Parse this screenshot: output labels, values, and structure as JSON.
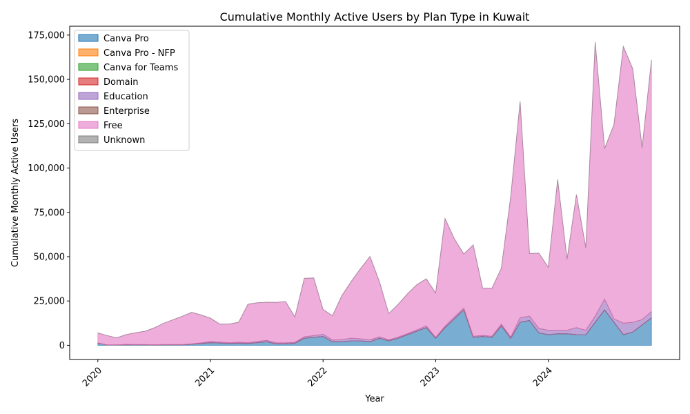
{
  "chart_data": {
    "type": "area",
    "stacked": true,
    "title": "Cumulative Monthly Active Users by Plan Type in Kuwait",
    "xlabel": "Year",
    "ylabel": "Cumulative Monthly Active Users",
    "x_start": "2020-01",
    "x_end": "2024-12",
    "xlim": [
      "2019-10",
      "2025-03"
    ],
    "ylim": [
      -8000,
      180000
    ],
    "y_ticks": [
      0,
      25000,
      50000,
      75000,
      100000,
      125000,
      150000,
      175000
    ],
    "y_tick_labels": [
      "0",
      "25,000",
      "50,000",
      "75,000",
      "100,000",
      "125,000",
      "150,000",
      "175,000"
    ],
    "x_ticks": [
      "2020-01",
      "2021-01",
      "2022-01",
      "2023-01",
      "2024-01"
    ],
    "x_tick_labels": [
      "2020",
      "2021",
      "2022",
      "2023",
      "2024"
    ],
    "legend_position": "upper-left",
    "series": [
      {
        "name": "Canva Pro",
        "color": "#1f77b4",
        "values": [
          1200,
          200,
          200,
          300,
          300,
          300,
          200,
          300,
          300,
          300,
          600,
          1000,
          1500,
          1300,
          1000,
          1200,
          1000,
          1500,
          2000,
          800,
          800,
          1200,
          4000,
          4500,
          5000,
          2000,
          2000,
          2500,
          2500,
          2000,
          4000,
          2500,
          4000,
          6000,
          8000,
          10000,
          4000,
          10000,
          15000,
          20000,
          4500,
          5000,
          4500,
          11000,
          4000,
          13000,
          14000,
          7000,
          6000,
          6500,
          6500,
          6000,
          6000,
          13000,
          20000,
          13000,
          6000,
          7500,
          11500,
          15500
        ]
      },
      {
        "name": "Canva Pro - NFP",
        "color": "#ff7f0e",
        "values": [
          0,
          0,
          0,
          0,
          0,
          0,
          0,
          0,
          0,
          0,
          0,
          0,
          0,
          0,
          0,
          0,
          0,
          0,
          0,
          0,
          0,
          0,
          0,
          0,
          0,
          0,
          0,
          0,
          0,
          0,
          0,
          0,
          0,
          0,
          0,
          0,
          0,
          0,
          0,
          0,
          0,
          0,
          0,
          0,
          0,
          0,
          0,
          0,
          0,
          0,
          0,
          0,
          0,
          0,
          0,
          0,
          0,
          0,
          0,
          0
        ]
      },
      {
        "name": "Canva for Teams",
        "color": "#2ca02c",
        "values": [
          0,
          0,
          0,
          0,
          0,
          0,
          0,
          0,
          0,
          0,
          0,
          0,
          0,
          0,
          0,
          0,
          0,
          0,
          0,
          0,
          0,
          0,
          0,
          0,
          0,
          0,
          0,
          0,
          0,
          0,
          0,
          0,
          0,
          0,
          0,
          0,
          0,
          0,
          0,
          0,
          0,
          0,
          0,
          0,
          0,
          0,
          0,
          0,
          0,
          0,
          0,
          0,
          0,
          0,
          0,
          0,
          0,
          0,
          0,
          0
        ]
      },
      {
        "name": "Domain",
        "color": "#d62728",
        "values": [
          0,
          0,
          0,
          0,
          0,
          0,
          0,
          0,
          0,
          0,
          0,
          0,
          0,
          0,
          0,
          0,
          0,
          0,
          0,
          0,
          0,
          0,
          0,
          0,
          0,
          0,
          0,
          0,
          0,
          0,
          0,
          0,
          0,
          0,
          0,
          0,
          0,
          0,
          0,
          0,
          0,
          0,
          0,
          0,
          0,
          0,
          0,
          0,
          0,
          0,
          0,
          0,
          0,
          0,
          0,
          0,
          0,
          0,
          0,
          0
        ]
      },
      {
        "name": "Education",
        "color": "#9467bd",
        "values": [
          200,
          0,
          0,
          200,
          100,
          100,
          100,
          100,
          100,
          100,
          200,
          400,
          600,
          500,
          500,
          500,
          500,
          700,
          800,
          600,
          600,
          500,
          800,
          1000,
          1200,
          1000,
          1200,
          1500,
          1200,
          1100,
          800,
          600,
          600,
          600,
          700,
          1000,
          500,
          800,
          1000,
          1000,
          600,
          600,
          600,
          900,
          600,
          2500,
          2500,
          2500,
          2500,
          2000,
          2000,
          4000,
          2500,
          3500,
          6000,
          2000,
          6500,
          5500,
          3000,
          3500
        ]
      },
      {
        "name": "Enterprise",
        "color": "#8c564b",
        "values": [
          0,
          0,
          0,
          0,
          0,
          0,
          0,
          0,
          0,
          0,
          0,
          0,
          0,
          0,
          0,
          0,
          0,
          0,
          0,
          0,
          0,
          0,
          0,
          0,
          0,
          0,
          0,
          0,
          0,
          0,
          0,
          0,
          0,
          0,
          0,
          0,
          0,
          0,
          0,
          0,
          0,
          0,
          0,
          0,
          0,
          0,
          0,
          0,
          0,
          0,
          0,
          0,
          0,
          0,
          0,
          0,
          0,
          0,
          0,
          0
        ]
      },
      {
        "name": "Free",
        "color": "#e377c2",
        "values": [
          5600,
          5300,
          4000,
          5500,
          6700,
          7500,
          9500,
          12000,
          14000,
          16000,
          17800,
          15700,
          13200,
          10200,
          10500,
          11300,
          21700,
          21800,
          21500,
          22800,
          23300,
          14300,
          33000,
          32500,
          14000,
          13700,
          24800,
          32000,
          39600,
          47000,
          31200,
          14800,
          18500,
          22500,
          25500,
          26500,
          25000,
          60700,
          44000,
          30500,
          51500,
          26700,
          27100,
          31600,
          79400,
          122000,
          35300,
          42500,
          35500,
          85000,
          40000,
          75000,
          46500,
          154500,
          85000,
          109500,
          156000,
          143000,
          97000,
          142000
        ]
      },
      {
        "name": "Unknown",
        "color": "#7f7f7f",
        "values": [
          0,
          0,
          0,
          0,
          0,
          0,
          0,
          0,
          0,
          0,
          0,
          0,
          0,
          0,
          0,
          0,
          0,
          0,
          0,
          0,
          0,
          0,
          0,
          0,
          0,
          0,
          0,
          0,
          0,
          0,
          0,
          0,
          0,
          0,
          0,
          0,
          0,
          0,
          0,
          0,
          0,
          0,
          0,
          0,
          0,
          0,
          0,
          0,
          0,
          0,
          0,
          0,
          0,
          0,
          0,
          0,
          0,
          0,
          0,
          0
        ]
      }
    ]
  }
}
